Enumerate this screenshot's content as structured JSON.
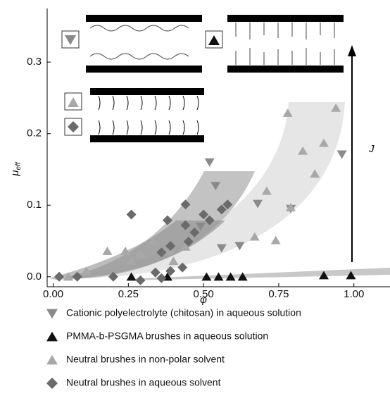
{
  "chart_data": {
    "type": "scatter",
    "xlabel": "φ",
    "ylabel": {
      "symbol": "μ",
      "subscript": "eff"
    },
    "annotation": "J",
    "xlim": [
      -0.02,
      1.12
    ],
    "ylim": [
      -0.014,
      0.375
    ],
    "xticks": [
      {
        "value": 0,
        "label": "0.00"
      },
      {
        "value": 0.25,
        "label": "0.25"
      },
      {
        "value": 0.5,
        "label": "0.50"
      },
      {
        "value": 0.75,
        "label": "0.75"
      },
      {
        "value": 1,
        "label": "1.00"
      }
    ],
    "yticks": [
      {
        "value": 0,
        "label": "0.0"
      },
      {
        "value": 0.1,
        "label": "0.1"
      },
      {
        "value": 0.2,
        "label": "0.2"
      },
      {
        "value": 0.3,
        "label": "0.3"
      }
    ],
    "series": [
      {
        "name": "Cationic polyelectrolyte (chitosan) in aqueous solution",
        "marker": "triangle-down",
        "color": "#8a8a8a",
        "x": [
          0.52,
          0.54,
          0.49,
          0.68,
          0.62,
          0.56,
          0.79,
          0.96
        ],
        "values": [
          0.16,
          0.127,
          0.07,
          0.102,
          0.043,
          0.04,
          0.095,
          0.171
        ]
      },
      {
        "name": "PMMA-b-PSGMA brushes in aqueous solution",
        "marker": "triangle",
        "color": "#111111",
        "x": [
          0.26,
          0.38,
          0.51,
          0.55,
          0.59,
          0.63,
          0.9,
          0.99
        ],
        "values": [
          0,
          0,
          0,
          0,
          0,
          0,
          0.002,
          0.002
        ]
      },
      {
        "name": "Neutral brushes in non-polar solvent",
        "marker": "triangle",
        "color": "#a8a8a8",
        "x": [
          0.71,
          0.74,
          0.79,
          0.83,
          0.87,
          0.9,
          0.94,
          0.78,
          0.67,
          0.18,
          0.24,
          0.26,
          0.29,
          0.33,
          0.39,
          0.44,
          0.4,
          0.11,
          0.05
        ],
        "values": [
          0.12,
          0.051,
          0.097,
          0.176,
          0.144,
          0.187,
          0.236,
          0.229,
          0.056,
          0.036,
          0.036,
          0.022,
          0.032,
          0.05,
          0.036,
          0.042,
          0.022,
          0.008,
          0
        ]
      },
      {
        "name": "Neutral brushes in aqueous solvent",
        "marker": "diamond",
        "color": "#6a6a6a",
        "x": [
          0.26,
          0.44,
          0.38,
          0.44,
          0.47,
          0.52,
          0.58,
          0.56,
          0.5,
          0.39,
          0.45,
          0.36,
          0.43,
          0.39,
          0.34,
          0.36,
          0.29,
          0.2,
          0.08,
          0.02
        ],
        "values": [
          0.087,
          0.101,
          0.079,
          0.072,
          0.062,
          0.079,
          0.101,
          0.094,
          0.087,
          0.043,
          0.049,
          0.034,
          0.013,
          0.008,
          0.006,
          -0.002,
          -0.005,
          0,
          0,
          0
        ]
      }
    ]
  }
}
